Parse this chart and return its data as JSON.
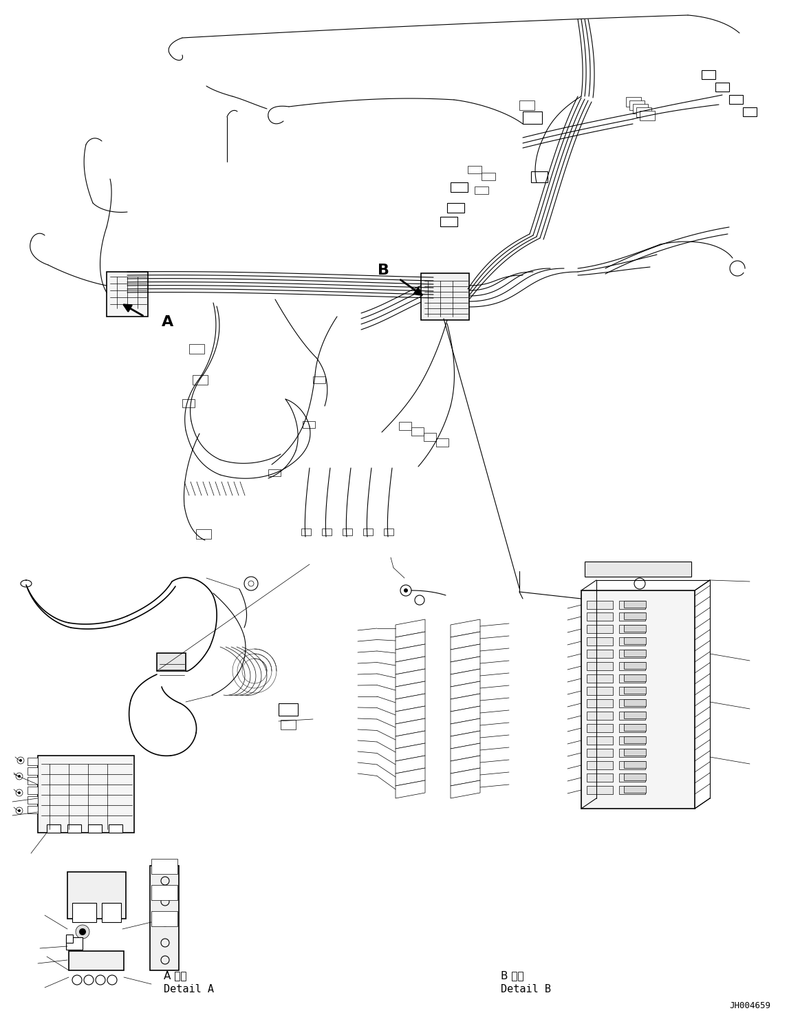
{
  "background_color": "#ffffff",
  "line_color": "#000000",
  "fig_width": 11.63,
  "fig_height": 14.88,
  "dpi": 100,
  "label_A_japanese": "A 詳細",
  "label_A_english": "Detail A",
  "label_B_japanese": "B 詳細",
  "label_B_english": "Detail B",
  "arrow_A_label": "A",
  "arrow_B_label": "B",
  "doc_number": "JH004659"
}
